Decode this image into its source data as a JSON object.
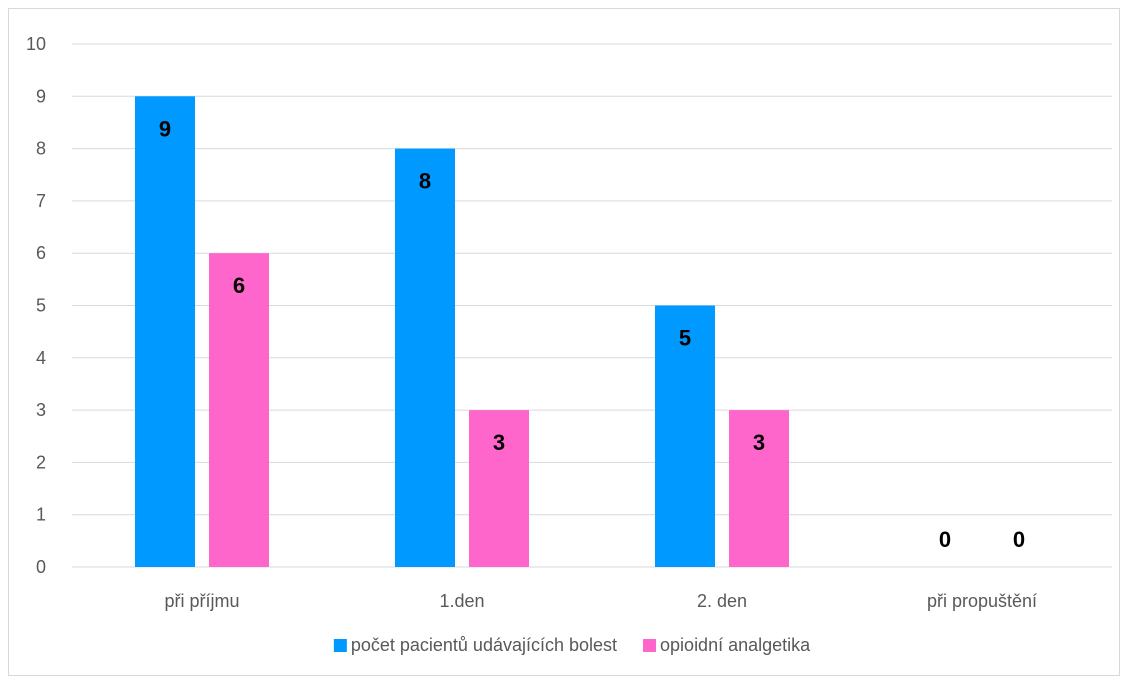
{
  "chart_data": {
    "type": "bar",
    "categories": [
      "při příjmu",
      "1.den",
      "2. den",
      "při propuštění"
    ],
    "series": [
      {
        "name": "počet pacientů udávajících bolest",
        "values": [
          9,
          8,
          5,
          0
        ],
        "color": "#0099ff"
      },
      {
        "name": "opioidní analgetika",
        "values": [
          6,
          3,
          3,
          0
        ],
        "color": "#ff66cc"
      }
    ],
    "ylim": [
      0,
      10
    ],
    "yticks": [
      0,
      1,
      2,
      3,
      4,
      5,
      6,
      7,
      8,
      9,
      10
    ],
    "grid": true,
    "legend_position": "bottom",
    "data_labels": true,
    "title": "",
    "xlabel": "",
    "ylabel": ""
  }
}
